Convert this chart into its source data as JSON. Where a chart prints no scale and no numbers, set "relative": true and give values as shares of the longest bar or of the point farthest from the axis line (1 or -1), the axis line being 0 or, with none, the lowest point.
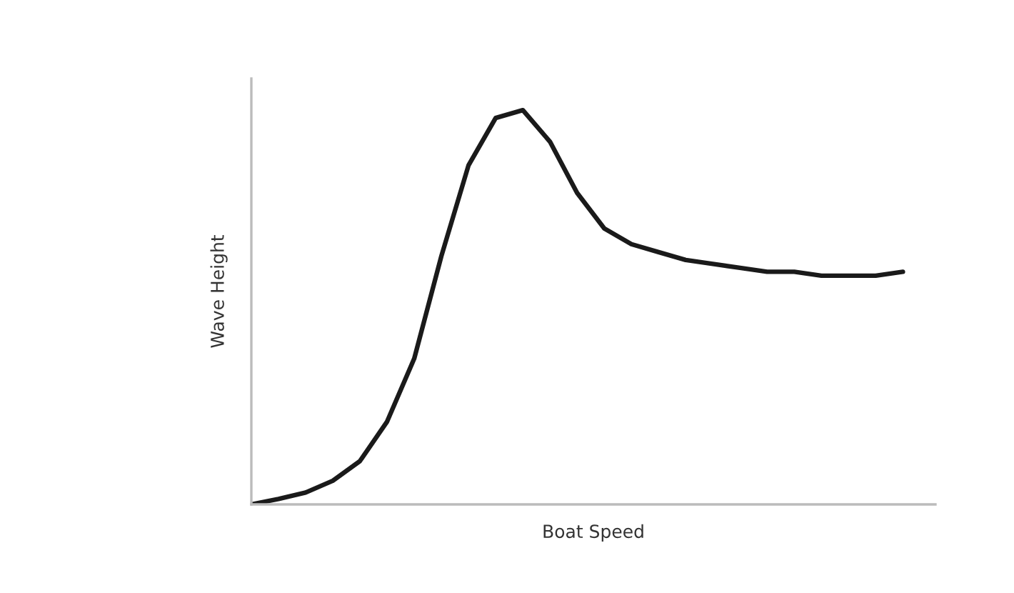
{
  "chart_data": {
    "type": "line",
    "xlabel": "Boat Speed",
    "ylabel": "Wave Height",
    "relative": true,
    "marker": "none",
    "line_style": "solid",
    "categories": [
      null,
      null,
      null,
      null,
      null,
      null,
      null,
      null,
      null,
      null,
      null,
      null,
      null,
      null,
      null,
      null,
      null,
      null,
      null,
      null,
      null,
      null,
      null,
      null,
      null
    ],
    "series": [
      {
        "color": "#1a1a1a",
        "values": [
          0.0,
          0.014,
          0.03,
          0.06,
          0.11,
          0.21,
          0.37,
          0.63,
          0.86,
          0.98,
          1.0,
          0.92,
          0.79,
          0.7,
          0.66,
          0.64,
          0.62,
          0.61,
          0.6,
          0.59,
          0.59,
          0.58,
          0.58,
          0.58,
          0.59
        ]
      }
    ]
  }
}
